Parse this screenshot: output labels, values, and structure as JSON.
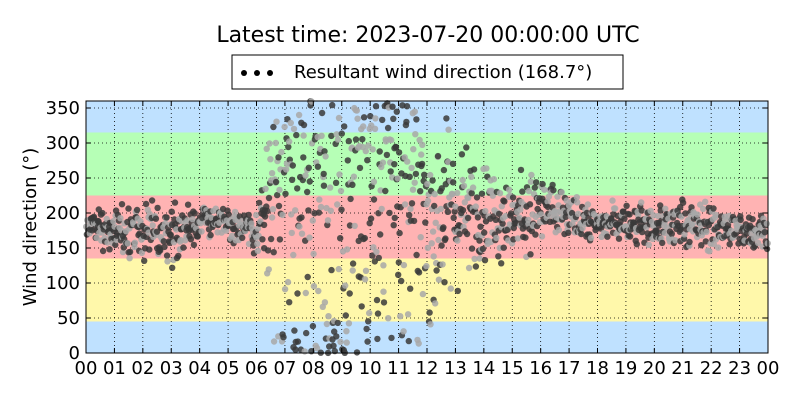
{
  "chart_data": {
    "type": "scatter",
    "title": "Latest time: 2023-07-20 00:00:00 UTC",
    "xlabel": "",
    "ylabel": "Wind direction (°)",
    "xlim": [
      0,
      24
    ],
    "ylim": [
      0,
      360
    ],
    "x_ticks": [
      "00",
      "01",
      "02",
      "03",
      "04",
      "05",
      "06",
      "07",
      "08",
      "09",
      "10",
      "11",
      "12",
      "13",
      "14",
      "15",
      "16",
      "17",
      "18",
      "19",
      "20",
      "21",
      "22",
      "23",
      "00"
    ],
    "y_ticks": [
      0,
      50,
      100,
      150,
      200,
      250,
      300,
      350
    ],
    "grid": true,
    "legend": {
      "placement": "top-center",
      "entries": [
        "Resultant wind direction (168.7°)"
      ]
    },
    "bands": [
      {
        "from": 0,
        "to": 45,
        "color": "#bfe1ff"
      },
      {
        "from": 45,
        "to": 135,
        "color": "#fff8aa"
      },
      {
        "from": 135,
        "to": 225,
        "color": "#ffb3b3"
      },
      {
        "from": 225,
        "to": 315,
        "color": "#b6ffb6"
      },
      {
        "from": 315,
        "to": 360,
        "color": "#bfe1ff"
      }
    ],
    "colors": {
      "recent": "#3a3a3a",
      "older": "#a8a8a8"
    },
    "resultant_direction": 168.7,
    "center_profile": [
      [
        0,
        185
      ],
      [
        1,
        175
      ],
      [
        2,
        175
      ],
      [
        3,
        165
      ],
      [
        4,
        190
      ],
      [
        5,
        185
      ],
      [
        6,
        175
      ],
      [
        7,
        300
      ],
      [
        8,
        315
      ],
      [
        9,
        320
      ],
      [
        10,
        300
      ],
      [
        11,
        280
      ],
      [
        12,
        200
      ],
      [
        13,
        200
      ],
      [
        14,
        200
      ],
      [
        15,
        195
      ],
      [
        16,
        205
      ],
      [
        17,
        195
      ],
      [
        18,
        185
      ],
      [
        19,
        185
      ],
      [
        20,
        180
      ],
      [
        21,
        185
      ],
      [
        22,
        180
      ],
      [
        23,
        175
      ],
      [
        24,
        175
      ]
    ],
    "spread_profile": [
      [
        0,
        12
      ],
      [
        1,
        25
      ],
      [
        2,
        25
      ],
      [
        3,
        28
      ],
      [
        4,
        18
      ],
      [
        5,
        14
      ],
      [
        6,
        25
      ],
      [
        7,
        120
      ],
      [
        8,
        140
      ],
      [
        9,
        140
      ],
      [
        10,
        150
      ],
      [
        11,
        140
      ],
      [
        12,
        110
      ],
      [
        13,
        75
      ],
      [
        14,
        45
      ],
      [
        15,
        40
      ],
      [
        16,
        35
      ],
      [
        17,
        25
      ],
      [
        18,
        15
      ],
      [
        19,
        18
      ],
      [
        20,
        22
      ],
      [
        21,
        25
      ],
      [
        22,
        25
      ],
      [
        23,
        18
      ],
      [
        24,
        14
      ]
    ],
    "points_per_hour": 60
  }
}
